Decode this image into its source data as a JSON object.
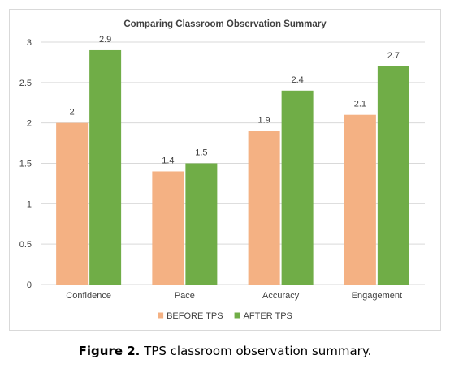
{
  "chart_data": {
    "type": "bar",
    "title": "Comparing Classroom Observation Summary",
    "categories": [
      "Confidence",
      "Pace",
      "Accuracy",
      "Engagement"
    ],
    "series": [
      {
        "name": "BEFORE TPS",
        "values": [
          2,
          1.4,
          1.9,
          2.1
        ],
        "color": "#f4b183"
      },
      {
        "name": "AFTER TPS",
        "values": [
          2.9,
          1.5,
          2.4,
          2.7
        ],
        "color": "#70ad47"
      }
    ],
    "data_labels": [
      [
        "2",
        "1.4",
        "1.9",
        "2.1"
      ],
      [
        "2.9",
        "1.5",
        "2.4",
        "2.7"
      ]
    ],
    "y_ticks": [
      "0",
      "0.5",
      "1",
      "1.5",
      "2",
      "2.5",
      "3"
    ],
    "ylim": [
      0,
      3
    ],
    "xlabel": "",
    "ylabel": "",
    "grid": true,
    "legend_position": "bottom"
  },
  "caption": {
    "label": "Figure 2.",
    "text": "TPS classroom observation summary."
  }
}
